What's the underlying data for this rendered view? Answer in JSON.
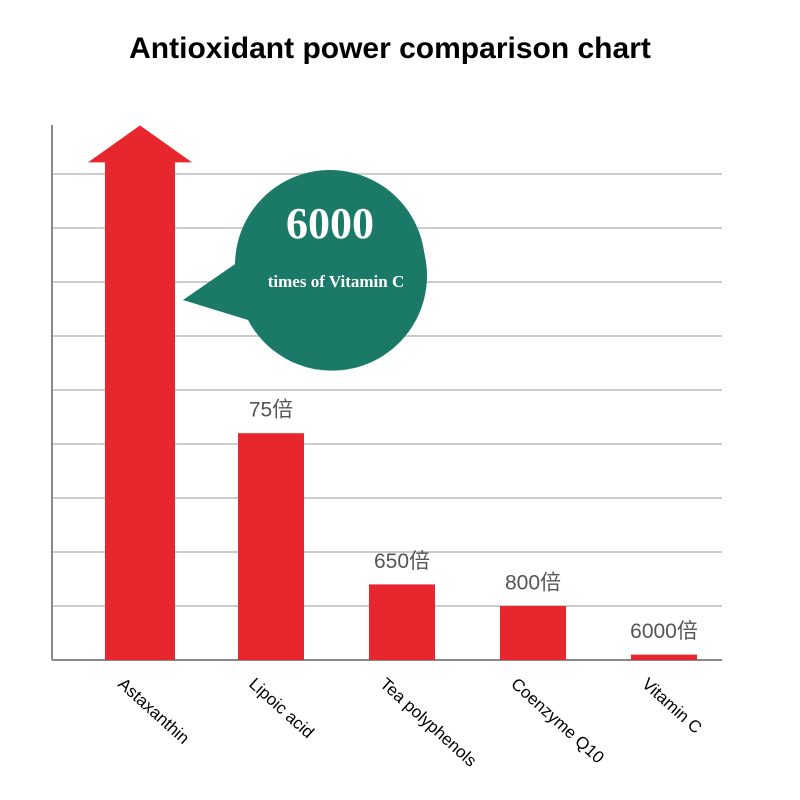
{
  "chart_data": {
    "type": "bar",
    "title": "Antioxidant power comparison chart",
    "categories": [
      "Astaxanthin",
      "Lipoic acid",
      "Tea polyphenols",
      "Coenzyme Q10",
      "Vitamin C"
    ],
    "values": [
      9.9,
      4.2,
      1.4,
      1.0,
      0.1
    ],
    "annotations": [
      null,
      "75倍",
      "650倍",
      "800倍",
      "6000倍"
    ],
    "callout": {
      "number": "6000",
      "text": "times of Vitamin C"
    },
    "color": "#e8262e",
    "callout_color": "#1b7a67",
    "ylim": [
      0,
      10
    ],
    "yticks": [
      0,
      1,
      2,
      3,
      4,
      5,
      6,
      7,
      8,
      9
    ],
    "grid": true
  }
}
